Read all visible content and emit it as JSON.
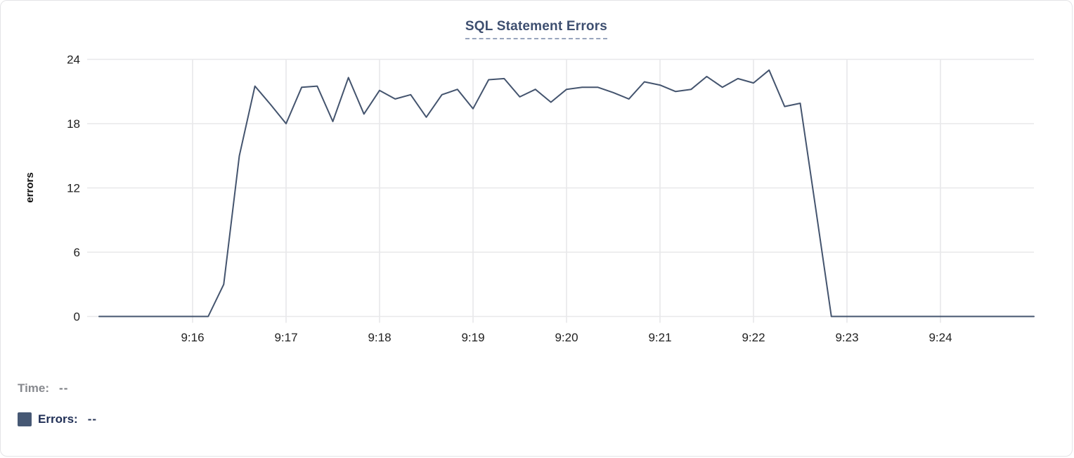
{
  "chart": {
    "title": "SQL Statement Errors"
  },
  "readout": {
    "time_label": "Time:",
    "time_value": "--",
    "errors_label": "Errors:",
    "errors_value": "--"
  },
  "chart_data": {
    "type": "line",
    "title": "SQL Statement Errors",
    "xlabel": "",
    "ylabel": "errors",
    "x_tick_labels": [
      "9:16",
      "9:17",
      "9:18",
      "9:19",
      "9:20",
      "9:21",
      "9:22",
      "9:23",
      "9:24"
    ],
    "y_ticks": [
      0,
      6,
      12,
      18,
      24
    ],
    "ylim": [
      0,
      24
    ],
    "grid": true,
    "legend_position": "bottom-left",
    "colors": {
      "line": "#44546e",
      "grid": "#e8e8ea",
      "tick_text": "#212121",
      "axis_title_text": "#111111"
    },
    "series": [
      {
        "name": "Errors",
        "color": "#44546e",
        "points": [
          [
            "9:15:00",
            0
          ],
          [
            "9:15:10",
            0
          ],
          [
            "9:15:20",
            0
          ],
          [
            "9:15:30",
            0
          ],
          [
            "9:15:40",
            0
          ],
          [
            "9:15:50",
            0
          ],
          [
            "9:16:00",
            0
          ],
          [
            "9:16:10",
            0
          ],
          [
            "9:16:20",
            3
          ],
          [
            "9:16:30",
            15
          ],
          [
            "9:16:40",
            21.5
          ],
          [
            "9:16:50",
            19.8
          ],
          [
            "9:17:00",
            18
          ],
          [
            "9:17:10",
            21.4
          ],
          [
            "9:17:20",
            21.5
          ],
          [
            "9:17:30",
            18.2
          ],
          [
            "9:17:40",
            22.3
          ],
          [
            "9:17:50",
            18.9
          ],
          [
            "9:18:00",
            21.1
          ],
          [
            "9:18:10",
            20.3
          ],
          [
            "9:18:20",
            20.7
          ],
          [
            "9:18:30",
            18.6
          ],
          [
            "9:18:40",
            20.7
          ],
          [
            "9:18:50",
            21.2
          ],
          [
            "9:19:00",
            19.4
          ],
          [
            "9:19:10",
            22.1
          ],
          [
            "9:19:20",
            22.2
          ],
          [
            "9:19:30",
            20.5
          ],
          [
            "9:19:40",
            21.2
          ],
          [
            "9:19:50",
            20.0
          ],
          [
            "9:20:00",
            21.2
          ],
          [
            "9:20:10",
            21.4
          ],
          [
            "9:20:20",
            21.4
          ],
          [
            "9:20:30",
            20.9
          ],
          [
            "9:20:40",
            20.3
          ],
          [
            "9:20:50",
            21.9
          ],
          [
            "9:21:00",
            21.6
          ],
          [
            "9:21:10",
            21.0
          ],
          [
            "9:21:20",
            21.2
          ],
          [
            "9:21:30",
            22.4
          ],
          [
            "9:21:40",
            21.4
          ],
          [
            "9:21:50",
            22.2
          ],
          [
            "9:22:00",
            21.8
          ],
          [
            "9:22:10",
            23.0
          ],
          [
            "9:22:20",
            19.6
          ],
          [
            "9:22:30",
            19.9
          ],
          [
            "9:22:40",
            10
          ],
          [
            "9:22:50",
            0
          ],
          [
            "9:23:00",
            0
          ],
          [
            "9:23:10",
            0
          ],
          [
            "9:23:20",
            0
          ],
          [
            "9:23:30",
            0
          ],
          [
            "9:23:40",
            0
          ],
          [
            "9:23:50",
            0
          ],
          [
            "9:24:00",
            0
          ],
          [
            "9:24:10",
            0
          ],
          [
            "9:24:20",
            0
          ],
          [
            "9:24:30",
            0
          ],
          [
            "9:24:40",
            0
          ],
          [
            "9:24:50",
            0
          ],
          [
            "9:25:00",
            0
          ]
        ]
      }
    ]
  }
}
